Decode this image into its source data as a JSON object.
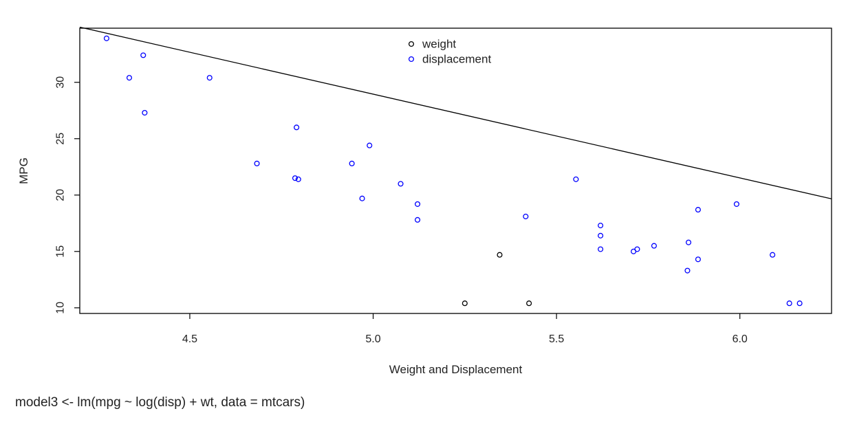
{
  "chart_data": {
    "type": "scatter",
    "xlabel": "Weight and Displacement",
    "ylabel": "MPG",
    "xlim": [
      4.2,
      6.25
    ],
    "ylim": [
      9.5,
      34.8
    ],
    "x_ticks": [
      4.5,
      5.0,
      5.5,
      6.0
    ],
    "x_tick_labels": [
      "4.5",
      "5.0",
      "5.5",
      "6.0"
    ],
    "y_ticks": [
      10,
      15,
      20,
      25,
      30
    ],
    "y_tick_labels": [
      "10",
      "15",
      "20",
      "25",
      "30"
    ],
    "legend_position": "top-center",
    "series": [
      {
        "name": "weight",
        "color": "#000000",
        "marker": "open-circle",
        "points": [
          [
            5.25,
            10.4
          ],
          [
            5.345,
            14.7
          ],
          [
            5.425,
            10.4
          ]
        ]
      },
      {
        "name": "displacement",
        "color": "#0000ff",
        "marker": "open-circle",
        "points": [
          [
            4.273,
            33.9
          ],
          [
            4.335,
            30.4
          ],
          [
            4.373,
            32.4
          ],
          [
            4.377,
            27.3
          ],
          [
            4.554,
            30.4
          ],
          [
            4.683,
            22.8
          ],
          [
            4.787,
            21.5
          ],
          [
            4.796,
            21.4
          ],
          [
            4.791,
            26.0
          ],
          [
            4.942,
            22.8
          ],
          [
            4.97,
            19.7
          ],
          [
            4.99,
            24.4
          ],
          [
            5.075,
            21.0
          ],
          [
            5.121,
            19.2
          ],
          [
            5.121,
            17.8
          ],
          [
            5.416,
            18.1
          ],
          [
            5.553,
            21.4
          ],
          [
            5.62,
            17.3
          ],
          [
            5.62,
            16.4
          ],
          [
            5.62,
            15.2
          ],
          [
            5.71,
            15.0
          ],
          [
            5.72,
            15.2
          ],
          [
            5.766,
            15.5
          ],
          [
            5.857,
            13.3
          ],
          [
            5.86,
            15.8
          ],
          [
            5.886,
            14.3
          ],
          [
            5.886,
            18.7
          ],
          [
            5.991,
            19.2
          ],
          [
            6.089,
            14.7
          ],
          [
            6.135,
            10.4
          ],
          [
            6.163,
            10.4
          ]
        ]
      }
    ],
    "regression_line": {
      "intercept": 66.1,
      "slope": -7.43,
      "color": "#000000"
    }
  },
  "code_text": "model3 <- lm(mpg ~ log(disp) + wt, data = mtcars)"
}
